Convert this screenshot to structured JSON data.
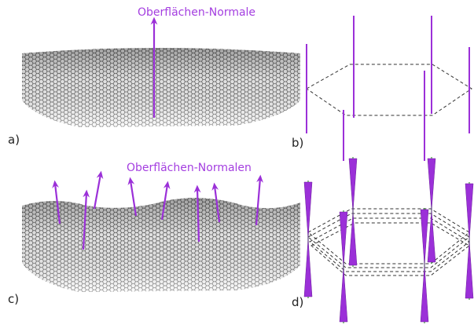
{
  "panels": {
    "a": {
      "label": "a)",
      "annotation": "Oberflächen-Normale"
    },
    "b": {
      "label": "b)"
    },
    "c": {
      "label": "c)",
      "annotation": "Oberflächen-Normalen"
    },
    "d": {
      "label": "d)"
    }
  }
}
